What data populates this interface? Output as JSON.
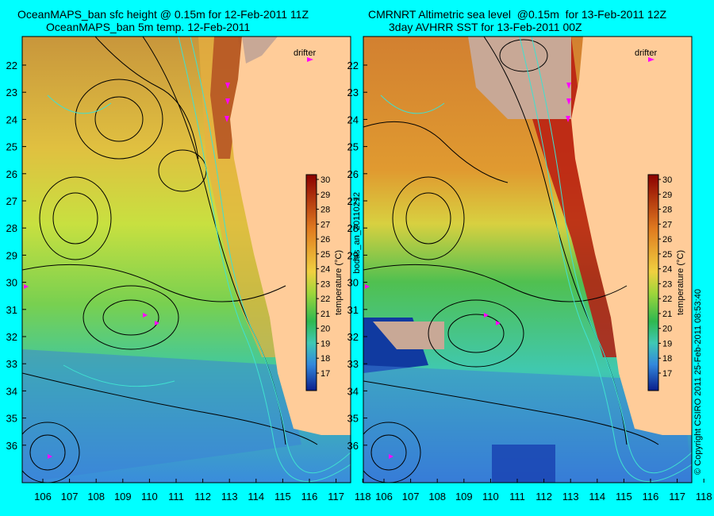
{
  "titles": {
    "left_line1": "OceanMAPS_ban sfc height @ 0.15m for 12-Feb-2011 11Z",
    "left_line2": "OceanMAPS_ban 5m temp. 12-Feb-2011",
    "right_line1": "CMRNRT Altimetric sea level  @0.15m  for 13-Feb-2011 12Z",
    "right_line2": "3day AVHRR SST for 13-Feb-2011 00Z"
  },
  "side_labels": {
    "middle": "bodas_an_20110212",
    "right": "© Copyright CSIRO 2011   25-Feb-2011 08:53:40"
  },
  "drifter_label": "drifter",
  "lat_ticks": [
    "22",
    "23",
    "24",
    "25",
    "26",
    "27",
    "28",
    "29",
    "30",
    "31",
    "32",
    "33",
    "34",
    "35",
    "36"
  ],
  "lon_ticks": [
    "106",
    "107",
    "108",
    "109",
    "110",
    "111",
    "112",
    "113",
    "114",
    "115",
    "116",
    "117",
    "118"
  ],
  "colorbar": {
    "label": "temperature (°C)",
    "ticks": [
      "30",
      "29",
      "28",
      "27",
      "26",
      "25",
      "24",
      "23",
      "22",
      "21",
      "20",
      "19",
      "18",
      "17"
    ],
    "colors": [
      "#8b0000",
      "#b22222",
      "#d2691e",
      "#e68a1f",
      "#f0a830",
      "#f5d040",
      "#e6e632",
      "#b4e632",
      "#46c846",
      "#28b450",
      "#3cc8b4",
      "#50b4e6",
      "#3278dc",
      "#1e50c8",
      "#0a1e8c"
    ]
  },
  "colors": {
    "background": "#00ffff",
    "land": "#ffcc99",
    "land_gray": "#c8a896",
    "contour": "#000000",
    "isobath": "#40e0d0",
    "drifter": "#ff00ff"
  }
}
